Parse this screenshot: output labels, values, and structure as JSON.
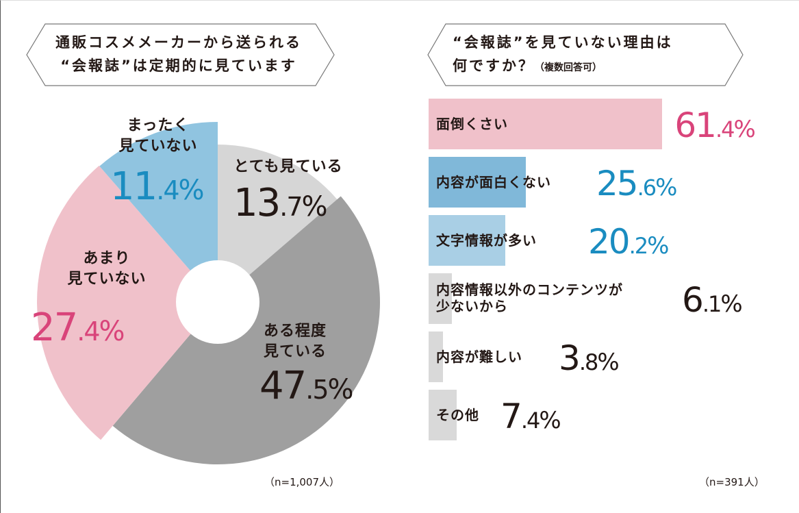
{
  "left_title": [
    "通販コスメメーカーから送られる",
    "“会報誌”は定期的に見ています"
  ],
  "right_title": [
    "“会報誌”を見ていない理由は",
    "何ですか？",
    "（複数回答可）"
  ],
  "left_n": "（n=1,007人）",
  "right_n": "（n=391人）",
  "colors": {
    "pink": "#d9447a",
    "blue": "#1a8cc0",
    "dark": "#231815"
  },
  "chart_data": [
    {
      "type": "pie",
      "title": "通販コスメメーカーから送られる“会報誌”は定期的に見ています",
      "slices": [
        {
          "label_lines": [
            "とても見ている"
          ],
          "value": 13.7,
          "int": "13",
          "dec": ".7",
          "pct": "%",
          "color": "#d6d6d6",
          "text_color": "#231815"
        },
        {
          "label_lines": [
            "ある程度",
            "見ている"
          ],
          "value": 47.5,
          "int": "47",
          "dec": ".5",
          "pct": "%",
          "color": "#9f9f9f",
          "text_color": "#231815"
        },
        {
          "label_lines": [
            "あまり",
            "見ていない"
          ],
          "value": 27.4,
          "int": "27",
          "dec": ".4",
          "pct": "%",
          "color": "#f0c1ca",
          "text_color": "#d9447a"
        },
        {
          "label_lines": [
            "まったく",
            "見ていない"
          ],
          "value": 11.4,
          "int": "11",
          "dec": ".4",
          "pct": "%",
          "color": "#90c4e0",
          "text_color": "#1a8cc0"
        }
      ]
    },
    {
      "type": "bar",
      "orientation": "horizontal",
      "title": "“会報誌”を見ていない理由は何ですか？（複数回答可）",
      "bars": [
        {
          "label_lines": [
            "面倒くさい"
          ],
          "value": 61.4,
          "int": "61",
          "dec": ".4",
          "pct": "%",
          "color": "#f0c1ca",
          "text_color": "#d9447a"
        },
        {
          "label_lines": [
            "内容が面白くない"
          ],
          "value": 25.6,
          "int": "25",
          "dec": ".6",
          "pct": "%",
          "color": "#80b8d9",
          "text_color": "#1a8cc0"
        },
        {
          "label_lines": [
            "文字情報が多い"
          ],
          "value": 20.2,
          "int": "20",
          "dec": ".2",
          "pct": "%",
          "color": "#a9cfe5",
          "text_color": "#1a8cc0"
        },
        {
          "label_lines": [
            "内容情報以外のコンテンツが",
            "少ないから"
          ],
          "value": 6.1,
          "int": "6",
          "dec": ".1",
          "pct": "%",
          "color": "#d9d9d9",
          "text_color": "#231815"
        },
        {
          "label_lines": [
            "内容が難しい"
          ],
          "value": 3.8,
          "int": "3",
          "dec": ".8",
          "pct": "%",
          "color": "#d9d9d9",
          "text_color": "#231815"
        },
        {
          "label_lines": [
            "その他"
          ],
          "value": 7.4,
          "int": "7",
          "dec": ".4",
          "pct": "%",
          "color": "#d9d9d9",
          "text_color": "#231815"
        }
      ]
    }
  ]
}
